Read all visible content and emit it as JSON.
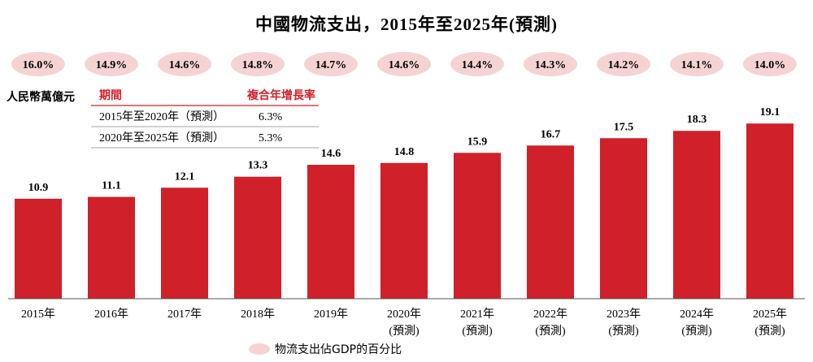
{
  "chart_data": {
    "type": "bar",
    "title": "中國物流支出，2015年至2025年(預測)",
    "ylabel": "人民幣萬億元",
    "categories": [
      "2015年",
      "2016年",
      "2017年",
      "2018年",
      "2019年",
      "2020年",
      "2021年",
      "2022年",
      "2023年",
      "2024年",
      "2025年"
    ],
    "category_notes": [
      "",
      "",
      "",
      "",
      "",
      "(預測)",
      "(預測)",
      "(預測)",
      "(預測)",
      "(預測)",
      "(預測)"
    ],
    "values": [
      10.9,
      11.1,
      12.1,
      13.3,
      14.6,
      14.8,
      15.9,
      16.7,
      17.5,
      18.3,
      19.1
    ],
    "value_labels": [
      "10.9",
      "11.1",
      "12.1",
      "13.3",
      "14.6",
      "14.8",
      "15.9",
      "16.7",
      "17.5",
      "18.3",
      "19.1"
    ],
    "ylim": [
      0,
      20
    ],
    "secondary_series": {
      "name": "物流支出佔GDP的百分比",
      "values": [
        16.0,
        14.9,
        14.6,
        14.8,
        14.7,
        14.6,
        14.4,
        14.3,
        14.2,
        14.1,
        14.0
      ],
      "labels": [
        "16.0%",
        "14.9%",
        "14.6%",
        "14.8%",
        "14.7%",
        "14.6%",
        "14.4%",
        "14.3%",
        "14.2%",
        "14.1%",
        "14.0%"
      ]
    },
    "cagr_table": {
      "headers": [
        "期間",
        "複合年增長率"
      ],
      "rows": [
        [
          "2015年至2020年（預測）",
          "6.3%"
        ],
        [
          "2020年至2025年（預測）",
          "5.3%"
        ]
      ]
    },
    "legend": {
      "label": "物流支出佔GDP的百分比",
      "placement": "bottom"
    },
    "grid": false
  },
  "colors": {
    "bar": "#d0202a",
    "ellipse": "#f6d3d3",
    "axis": "#555555",
    "text": "#1a1a1a",
    "accent": "#d0202a"
  }
}
